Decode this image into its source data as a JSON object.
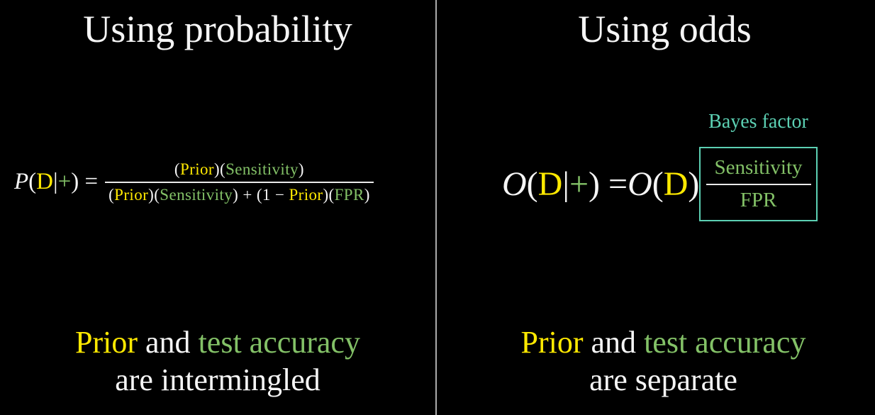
{
  "colors": {
    "background": "#000000",
    "white": "#f5f5f5",
    "yellow": "#ffe900",
    "green": "#83c167",
    "teal": "#5cd0b3",
    "divider": "#ababab",
    "fraction_bar": "#e9e9e9"
  },
  "left": {
    "title": "Using probability",
    "formula": {
      "lhs": {
        "p": "P",
        "open": "(",
        "d": "D",
        "pipe": "|",
        "plus": "+",
        "close_eq": ") ="
      },
      "numerator": {
        "open": "(",
        "prior": "Prior",
        "mid": ")(",
        "sensitivity": "Sensitivity",
        "close": ")"
      },
      "denominator": {
        "open": "(",
        "prior": "Prior",
        "mid": ")(",
        "sensitivity": "Sensitivity",
        "plus_one_minus": ") + (1 − ",
        "prior2": "Prior",
        "mid2": ")(",
        "fpr": "FPR",
        "close": ")"
      }
    },
    "caption": {
      "prior": "Prior",
      "and": " and ",
      "accuracy": "test accuracy",
      "line2": "are intermingled"
    }
  },
  "right": {
    "title": "Using odds",
    "bayes_factor_label": "Bayes factor",
    "formula": {
      "lhs": {
        "o1": "O",
        "open1": "(",
        "d1": "D",
        "pipe": "|",
        "plus": "+",
        "close_eq": ") = ",
        "o2": "O",
        "open2": "(",
        "d2": "D",
        "close": ")"
      },
      "box": {
        "numerator": "Sensitivity",
        "denominator": "FPR"
      }
    },
    "caption": {
      "prior": "Prior",
      "and": " and ",
      "accuracy": "test accuracy",
      "line2": "are separate"
    }
  }
}
